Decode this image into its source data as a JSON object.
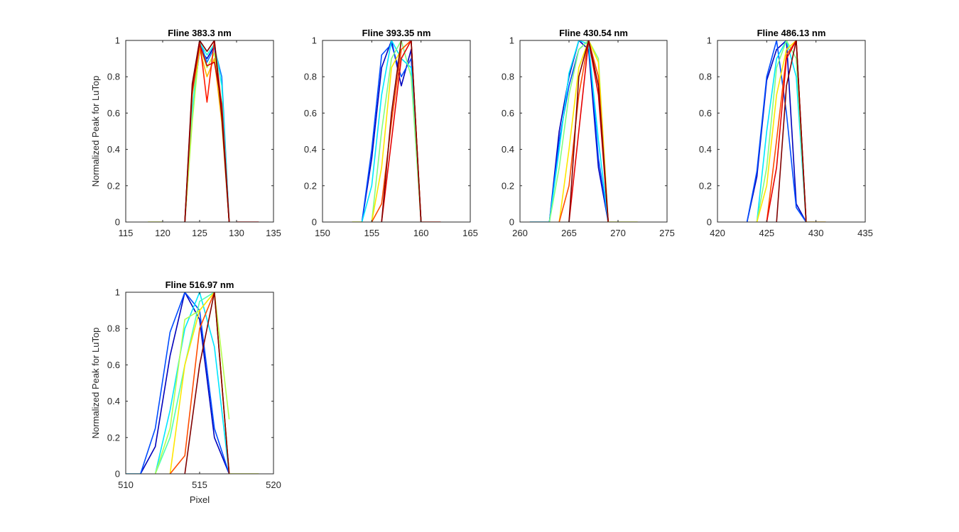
{
  "figure": {
    "background": "#ffffff"
  },
  "colors": {
    "axis": "#262626",
    "jet_ramp": [
      "#00008f",
      "#0000ff",
      "#0080ff",
      "#00ffff",
      "#80ff80",
      "#ffff00",
      "#ff8000",
      "#ff0000",
      "#800000"
    ]
  },
  "chart_data": [
    {
      "type": "line",
      "title": "Fline 383.3 nm",
      "ylabel": "Normalized Peak for LuTop",
      "xlabel": "",
      "xlim": [
        115,
        135
      ],
      "ylim": [
        0,
        1
      ],
      "xticks": [
        115,
        120,
        125,
        130,
        135
      ],
      "yticks": [
        0,
        0.2,
        0.4,
        0.6,
        0.8,
        1
      ],
      "grid": false,
      "series": [
        {
          "color_index": 0.05,
          "x": [
            123,
            124,
            125,
            126,
            127,
            128,
            129
          ],
          "y": [
            0,
            0.6,
            0.95,
            0.9,
            0.97,
            0.6,
            0
          ]
        },
        {
          "color_index": 0.25,
          "x": [
            123,
            124,
            125,
            126,
            127,
            128,
            129
          ],
          "y": [
            0,
            0.58,
            1.0,
            0.88,
            0.96,
            0.8,
            0
          ]
        },
        {
          "color_index": 0.4,
          "x": [
            123,
            124,
            125,
            126,
            127,
            128,
            129
          ],
          "y": [
            0,
            0.62,
            0.99,
            0.92,
            0.98,
            0.75,
            0
          ]
        },
        {
          "color_index": 0.55,
          "x": [
            123,
            124,
            125,
            126,
            127,
            128,
            129
          ],
          "y": [
            0,
            0.55,
            0.97,
            0.85,
            0.93,
            0.62,
            0
          ]
        },
        {
          "color_index": 0.7,
          "x": [
            123,
            124,
            125,
            126,
            127,
            128,
            129
          ],
          "y": [
            0,
            0.7,
            0.95,
            0.8,
            0.9,
            0.55,
            0
          ]
        },
        {
          "color_index": 0.85,
          "x": [
            123,
            124,
            125,
            126,
            127,
            128,
            129
          ],
          "y": [
            0,
            0.74,
            1.0,
            0.66,
            1.0,
            0.63,
            0
          ]
        },
        {
          "color_index": 0.92,
          "x": [
            123,
            124,
            125,
            126,
            127,
            128,
            129
          ],
          "y": [
            0,
            0.72,
            0.98,
            0.86,
            0.88,
            0.65,
            0
          ]
        },
        {
          "color_index": 1.0,
          "x": [
            123,
            124,
            125,
            126,
            127,
            128,
            129
          ],
          "y": [
            0,
            0.76,
            1.0,
            0.94,
            1.0,
            0.58,
            0
          ]
        },
        {
          "color_index": 0.6,
          "x": [
            118,
            119,
            120
          ],
          "y": [
            0,
            0,
            0
          ]
        },
        {
          "color_index": 0.9,
          "x": [
            130,
            131,
            132,
            133
          ],
          "y": [
            0,
            0,
            0,
            0
          ]
        }
      ]
    },
    {
      "type": "line",
      "title": "Fline 393.35 nm",
      "ylabel": "",
      "xlabel": "",
      "xlim": [
        150,
        165
      ],
      "ylim": [
        0,
        1
      ],
      "xticks": [
        150,
        155,
        160,
        165
      ],
      "yticks": [
        0,
        0.2,
        0.4,
        0.6,
        0.8,
        1
      ],
      "grid": false,
      "series": [
        {
          "color_index": 0.05,
          "x": [
            154,
            155,
            156,
            157,
            158,
            159,
            160
          ],
          "y": [
            0,
            0.35,
            0.85,
            1.0,
            0.75,
            0.95,
            0
          ]
        },
        {
          "color_index": 0.2,
          "x": [
            154,
            155,
            156,
            157,
            158,
            159,
            160
          ],
          "y": [
            0,
            0.4,
            0.92,
            0.98,
            0.8,
            0.9,
            0
          ]
        },
        {
          "color_index": 0.35,
          "x": [
            154,
            155,
            156,
            157,
            158,
            159,
            160
          ],
          "y": [
            0,
            0.2,
            0.7,
            1.0,
            0.9,
            0.85,
            0
          ]
        },
        {
          "color_index": 0.5,
          "x": [
            155,
            156,
            157,
            158,
            159,
            160
          ],
          "y": [
            0,
            0.5,
            0.9,
            1.0,
            0.8,
            0
          ]
        },
        {
          "color_index": 0.65,
          "x": [
            155,
            156,
            157,
            158,
            159,
            160
          ],
          "y": [
            0,
            0.3,
            0.85,
            0.95,
            1.0,
            0
          ]
        },
        {
          "color_index": 0.8,
          "x": [
            155,
            156,
            157,
            158,
            159,
            160
          ],
          "y": [
            0,
            0.1,
            0.55,
            0.95,
            1.0,
            0
          ]
        },
        {
          "color_index": 0.9,
          "x": [
            156,
            157,
            158,
            159,
            160
          ],
          "y": [
            0,
            0.45,
            0.9,
            1.0,
            0
          ]
        },
        {
          "color_index": 1.0,
          "x": [
            156,
            157,
            158,
            159,
            160
          ],
          "y": [
            0,
            0.6,
            1.0,
            1.0,
            0
          ]
        },
        {
          "color_index": 0.6,
          "x": [
            153,
            154
          ],
          "y": [
            0,
            0
          ]
        },
        {
          "color_index": 0.85,
          "x": [
            160,
            161,
            162
          ],
          "y": [
            0,
            0,
            0
          ]
        }
      ]
    },
    {
      "type": "line",
      "title": "Fline 430.54 nm",
      "ylabel": "",
      "xlabel": "",
      "xlim": [
        260,
        275
      ],
      "ylim": [
        0,
        1
      ],
      "xticks": [
        260,
        265,
        270,
        275
      ],
      "yticks": [
        0,
        0.2,
        0.4,
        0.6,
        0.8,
        1
      ],
      "grid": false,
      "series": [
        {
          "color_index": 0.05,
          "x": [
            263,
            264,
            265,
            266,
            267,
            268,
            269
          ],
          "y": [
            0,
            0.5,
            0.8,
            1.0,
            0.95,
            0.3,
            0
          ]
        },
        {
          "color_index": 0.2,
          "x": [
            263,
            264,
            265,
            266,
            267,
            268,
            269
          ],
          "y": [
            0,
            0.45,
            0.75,
            0.95,
            1.0,
            0.35,
            0
          ]
        },
        {
          "color_index": 0.35,
          "x": [
            263,
            264,
            265,
            266,
            267,
            268,
            269
          ],
          "y": [
            0,
            0.4,
            0.82,
            1.0,
            0.98,
            0.45,
            0
          ]
        },
        {
          "color_index": 0.5,
          "x": [
            263,
            264,
            265,
            266,
            267,
            268,
            269
          ],
          "y": [
            0,
            0.3,
            0.7,
            0.95,
            1.0,
            0.9,
            0
          ]
        },
        {
          "color_index": 0.65,
          "x": [
            264,
            265,
            266,
            267,
            268,
            269
          ],
          "y": [
            0,
            0.4,
            0.85,
            1.0,
            0.88,
            0
          ]
        },
        {
          "color_index": 0.8,
          "x": [
            264,
            265,
            266,
            267,
            268,
            269
          ],
          "y": [
            0,
            0.2,
            0.7,
            1.0,
            0.8,
            0
          ]
        },
        {
          "color_index": 0.9,
          "x": [
            265,
            266,
            267,
            268,
            269
          ],
          "y": [
            0,
            0.5,
            1.0,
            0.7,
            0
          ]
        },
        {
          "color_index": 1.0,
          "x": [
            265,
            266,
            267,
            268,
            269
          ],
          "y": [
            0,
            0.8,
            1.0,
            0.75,
            0
          ]
        },
        {
          "color_index": 0.3,
          "x": [
            261,
            262,
            263
          ],
          "y": [
            0,
            0,
            0
          ]
        },
        {
          "color_index": 0.6,
          "x": [
            269,
            270,
            271,
            272
          ],
          "y": [
            0,
            0,
            0,
            0
          ]
        }
      ]
    },
    {
      "type": "line",
      "title": "Fline 486.13 nm",
      "ylabel": "",
      "xlabel": "",
      "xlim": [
        420,
        435
      ],
      "ylim": [
        0,
        1
      ],
      "xticks": [
        420,
        425,
        430,
        435
      ],
      "yticks": [
        0,
        0.2,
        0.4,
        0.6,
        0.8,
        1
      ],
      "grid": false,
      "series": [
        {
          "color_index": 0.05,
          "x": [
            423,
            424,
            425,
            426,
            427,
            428,
            429
          ],
          "y": [
            0,
            0.25,
            0.78,
            0.95,
            1.0,
            0.1,
            0
          ]
        },
        {
          "color_index": 0.2,
          "x": [
            423,
            424,
            425,
            426,
            427,
            428,
            429
          ],
          "y": [
            0,
            0.28,
            0.8,
            1.0,
            0.6,
            0.08,
            0
          ]
        },
        {
          "color_index": 0.35,
          "x": [
            424,
            425,
            426,
            427,
            428,
            429
          ],
          "y": [
            0,
            0.5,
            0.9,
            1.0,
            0.8,
            0
          ]
        },
        {
          "color_index": 0.5,
          "x": [
            424,
            425,
            426,
            427,
            428,
            429
          ],
          "y": [
            0,
            0.3,
            0.85,
            1.0,
            0.9,
            0
          ]
        },
        {
          "color_index": 0.65,
          "x": [
            424,
            425,
            426,
            427,
            428,
            429
          ],
          "y": [
            0,
            0.2,
            0.7,
            0.95,
            1.0,
            0
          ]
        },
        {
          "color_index": 0.8,
          "x": [
            425,
            426,
            427,
            428,
            429
          ],
          "y": [
            0,
            0.45,
            0.92,
            1.0,
            0
          ]
        },
        {
          "color_index": 0.9,
          "x": [
            425,
            426,
            427,
            428,
            429
          ],
          "y": [
            0,
            0.3,
            0.9,
            1.0,
            0
          ]
        },
        {
          "color_index": 1.0,
          "x": [
            426,
            427,
            428,
            429
          ],
          "y": [
            0,
            0.75,
            1.0,
            0
          ]
        },
        {
          "color_index": 0.7,
          "x": [
            429,
            430,
            431
          ],
          "y": [
            0,
            0,
            0
          ]
        }
      ]
    },
    {
      "type": "line",
      "title": "Fline 516.97 nm",
      "ylabel": "Normalized Peak for LuTop",
      "xlabel": "Pixel",
      "xlim": [
        510,
        520
      ],
      "ylim": [
        0,
        1
      ],
      "xticks": [
        510,
        515,
        520
      ],
      "yticks": [
        0,
        0.2,
        0.4,
        0.6,
        0.8,
        1
      ],
      "grid": false,
      "series": [
        {
          "color_index": 0.05,
          "x": [
            511,
            512,
            513,
            514,
            515,
            516,
            517
          ],
          "y": [
            0,
            0.15,
            0.65,
            1.0,
            0.85,
            0.2,
            0
          ]
        },
        {
          "color_index": 0.2,
          "x": [
            511,
            512,
            513,
            514,
            515,
            516,
            517
          ],
          "y": [
            0,
            0.25,
            0.78,
            1.0,
            0.9,
            0.25,
            0
          ]
        },
        {
          "color_index": 0.35,
          "x": [
            512,
            513,
            514,
            515,
            516,
            517
          ],
          "y": [
            0,
            0.35,
            0.8,
            1.0,
            0.7,
            0
          ]
        },
        {
          "color_index": 0.45,
          "x": [
            512,
            513,
            514,
            515,
            516,
            517
          ],
          "y": [
            0,
            0.2,
            0.6,
            0.95,
            1.0,
            0
          ]
        },
        {
          "color_index": 0.55,
          "x": [
            512,
            513,
            514,
            515,
            516,
            517
          ],
          "y": [
            0,
            0.25,
            0.85,
            0.9,
            1.0,
            0.3
          ]
        },
        {
          "color_index": 0.65,
          "x": [
            513,
            514,
            515,
            516,
            517
          ],
          "y": [
            0,
            0.6,
            0.9,
            1.0,
            0
          ]
        },
        {
          "color_index": 0.8,
          "x": [
            513,
            514,
            515,
            516,
            517
          ],
          "y": [
            0,
            0.1,
            0.8,
            1.0,
            0
          ]
        },
        {
          "color_index": 1.0,
          "x": [
            514,
            515,
            516,
            517
          ],
          "y": [
            0,
            0.6,
            1.0,
            0
          ]
        },
        {
          "color_index": 0.3,
          "x": [
            510,
            511
          ],
          "y": [
            0,
            0
          ]
        },
        {
          "color_index": 0.6,
          "x": [
            517,
            518,
            519
          ],
          "y": [
            0,
            0,
            0
          ]
        }
      ]
    }
  ]
}
